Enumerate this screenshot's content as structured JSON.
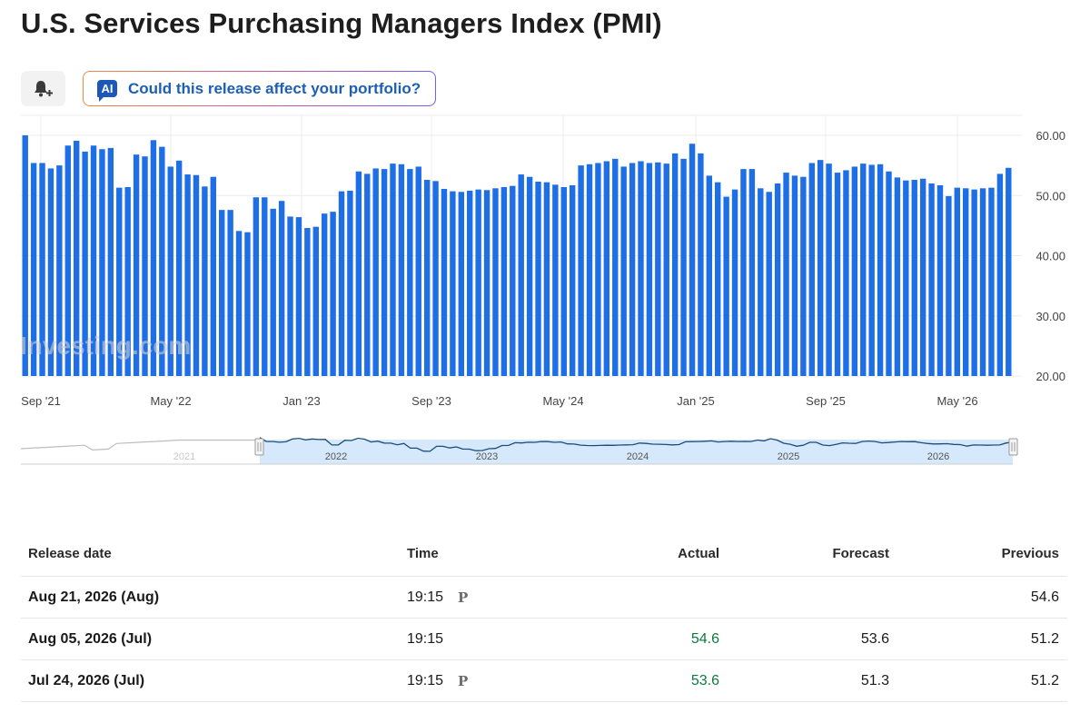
{
  "header": {
    "title": "U.S. Services Purchasing Managers Index (PMI)"
  },
  "toolbar": {
    "alert_icon": "bell-plus-icon",
    "ai_badge": "AI",
    "ai_prompt": "Could this release affect your portfolio?"
  },
  "colors": {
    "bar": "#1e6ee6",
    "positive": "#0c7a3e",
    "accent": "#1d58b8",
    "nav_fill": "#d6e8fb"
  },
  "chart_data": {
    "type": "bar",
    "title": "",
    "xlabel": "",
    "ylabel": "",
    "ylim": [
      20,
      60
    ],
    "y_ticks": [
      "60.00",
      "50.00",
      "40.00",
      "30.00",
      "20.00"
    ],
    "x_tick_labels": [
      "Sep '21",
      "May '22",
      "Jan '23",
      "Sep '23",
      "May '24",
      "Jan '25",
      "Sep '25",
      "May '26"
    ],
    "navigator_labels": [
      "2021",
      "2022",
      "2023",
      "2024",
      "2025",
      "2026"
    ],
    "watermark": "Investing.com",
    "grid": true,
    "values": [
      60.0,
      55.4,
      55.4,
      54.5,
      55.0,
      58.3,
      59.1,
      57.3,
      58.3,
      57.7,
      57.9,
      51.3,
      51.4,
      56.8,
      56.5,
      59.2,
      58.1,
      54.8,
      55.8,
      53.5,
      53.4,
      51.5,
      53.1,
      47.6,
      47.6,
      44.1,
      43.9,
      49.7,
      49.7,
      47.8,
      49.1,
      46.5,
      46.4,
      44.6,
      44.8,
      47.0,
      47.3,
      50.7,
      50.8,
      54.0,
      53.6,
      54.5,
      54.4,
      55.3,
      55.2,
      54.4,
      54.8,
      52.6,
      52.4,
      51.1,
      50.7,
      50.6,
      50.8,
      51.0,
      50.9,
      51.2,
      51.4,
      51.6,
      53.5,
      53.1,
      52.3,
      52.2,
      51.8,
      51.4,
      51.7,
      55.0,
      55.2,
      55.4,
      55.7,
      56.1,
      54.8,
      55.4,
      55.7,
      55.4,
      55.5,
      55.3,
      57.0,
      56.1,
      58.6,
      57.0,
      53.3,
      52.2,
      49.8,
      51.0,
      54.4,
      54.4,
      51.2,
      50.6,
      52.0,
      53.8,
      53.3,
      53.1,
      55.4,
      55.9,
      55.3,
      53.8,
      54.2,
      54.8,
      55.3,
      55.1,
      55.2,
      54.0,
      53.0,
      52.5,
      52.6,
      52.8,
      52.0,
      51.7,
      49.9,
      51.3,
      51.2,
      51.0,
      51.2,
      51.3,
      53.6,
      54.6
    ]
  },
  "table": {
    "columns": [
      "Release date",
      "Time",
      "Actual",
      "Forecast",
      "Previous"
    ],
    "rows": [
      {
        "date": "Aug 21, 2026 (Aug)",
        "time": "19:15",
        "flag": "P",
        "actual": "",
        "forecast": "",
        "previous": "54.6"
      },
      {
        "date": "Aug 05, 2026 (Jul)",
        "time": "19:15",
        "flag": "",
        "actual": "54.6",
        "forecast": "53.6",
        "previous": "51.2"
      },
      {
        "date": "Jul 24, 2026 (Jul)",
        "time": "19:15",
        "flag": "P",
        "actual": "53.6",
        "forecast": "51.3",
        "previous": "51.2"
      }
    ]
  }
}
